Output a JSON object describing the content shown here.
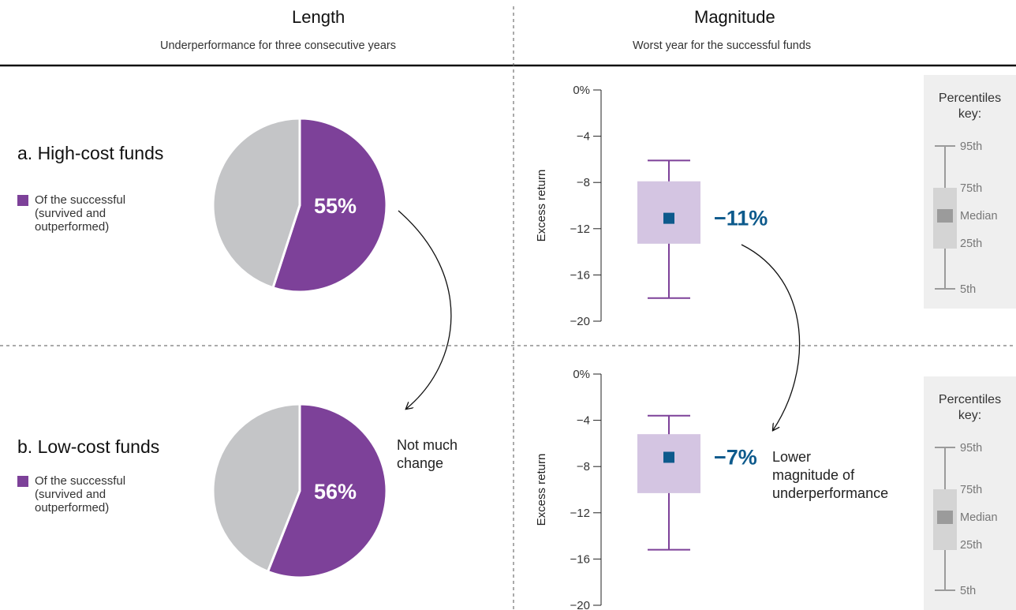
{
  "headers": {
    "length_title": "Length",
    "length_subtitle": "Underperformance for three consecutive years",
    "magnitude_title": "Magnitude",
    "magnitude_subtitle": "Worst year for the successful funds"
  },
  "rows": [
    {
      "title": "a. High-cost funds",
      "legend_lines": [
        "Of the successful",
        "(survived and",
        "outperformed)"
      ]
    },
    {
      "title": "b. Low-cost funds",
      "legend_lines": [
        "Of the successful",
        "(survived and",
        "outperformed)"
      ]
    }
  ],
  "annotations": {
    "length_change": [
      "Not much",
      "change"
    ],
    "magnitude_change": [
      "Lower",
      "magnitude of",
      "underperformance"
    ]
  },
  "percentiles_key": {
    "title_lines": [
      "Percentiles",
      "key:"
    ],
    "labels": [
      "95th",
      "75th",
      "Median",
      "25th",
      "5th"
    ]
  },
  "colors": {
    "purple": "#7d4199",
    "gray_slice": "#c4c5c7",
    "box_fill": "#d4c5e2",
    "median_marker": "#0d5a8c",
    "value_text": "#0d5a8c",
    "key_box": "#d4d4d4",
    "key_median": "#9b9b9b",
    "key_line": "#9b9b9b"
  },
  "chart_data": [
    {
      "type": "pie",
      "row": "a. High-cost funds",
      "slices": [
        {
          "name": "Of the successful (survived and outperformed)",
          "value": 55,
          "label": "55%"
        },
        {
          "name": "",
          "value": 45
        }
      ]
    },
    {
      "type": "pie",
      "row": "b. Low-cost funds",
      "slices": [
        {
          "name": "Of the successful (survived and outperformed)",
          "value": 56,
          "label": "56%"
        },
        {
          "name": "",
          "value": 44
        }
      ]
    },
    {
      "type": "box",
      "row": "a. High-cost funds",
      "ylabel": "Excess return",
      "ylim": [
        -20,
        0
      ],
      "yticks": [
        0,
        -4,
        -8,
        -12,
        -16,
        -20
      ],
      "ytick_labels": [
        "0%",
        "−4",
        "−8",
        "−12",
        "−16",
        "−20"
      ],
      "p95": -6.1,
      "p75": -7.9,
      "median": -11.1,
      "p25": -13.3,
      "p5": -18.0,
      "value_label": "−11%"
    },
    {
      "type": "box",
      "row": "b. Low-cost funds",
      "ylabel": "Excess return",
      "ylim": [
        -20,
        0
      ],
      "yticks": [
        0,
        -4,
        -8,
        -12,
        -16,
        -20
      ],
      "ytick_labels": [
        "0%",
        "−4",
        "−8",
        "−12",
        "−16",
        "−20"
      ],
      "p95": -3.6,
      "p75": -5.2,
      "median": -7.2,
      "p25": -10.3,
      "p5": -15.2,
      "value_label": "−7%"
    }
  ]
}
